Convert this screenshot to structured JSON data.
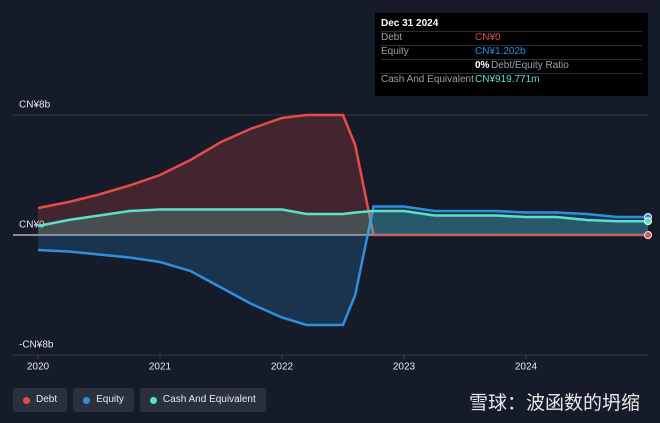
{
  "chart_data": {
    "type": "line",
    "x": [
      2020,
      2020.25,
      2020.5,
      2020.75,
      2021,
      2021.25,
      2021.5,
      2021.75,
      2022,
      2022.2,
      2022.5,
      2022.6,
      2022.75,
      2023,
      2023.25,
      2023.5,
      2023.75,
      2024,
      2024.25,
      2024.5,
      2024.75,
      2025
    ],
    "series": [
      {
        "name": "Debt",
        "color": "#e64b4b",
        "values": [
          1.8,
          2.2,
          2.7,
          3.3,
          4.0,
          5.0,
          6.2,
          7.1,
          7.8,
          8.0,
          8.0,
          6.0,
          0,
          0,
          0,
          0,
          0,
          0,
          0,
          0,
          0,
          0
        ]
      },
      {
        "name": "Equity",
        "color": "#2f8fdd",
        "values": [
          -1.0,
          -1.1,
          -1.3,
          -1.5,
          -1.8,
          -2.4,
          -3.5,
          -4.6,
          -5.5,
          -6.0,
          -6.0,
          -4.0,
          1.9,
          1.9,
          1.6,
          1.6,
          1.6,
          1.5,
          1.5,
          1.4,
          1.2,
          1.202
        ]
      },
      {
        "name": "Cash And Equivalent",
        "color": "#5ce0c8",
        "values": [
          0.6,
          1.0,
          1.3,
          1.6,
          1.7,
          1.7,
          1.7,
          1.7,
          1.7,
          1.4,
          1.4,
          1.5,
          1.6,
          1.6,
          1.3,
          1.3,
          1.3,
          1.2,
          1.2,
          1.0,
          0.92,
          0.92
        ]
      }
    ],
    "xlim": [
      2020,
      2025
    ],
    "xticks": [
      2020,
      2021,
      2022,
      2023,
      2024
    ],
    "ylim": [
      -8,
      8
    ],
    "yticks": [
      {
        "value": 8,
        "label": "CN¥8b"
      },
      {
        "value": 0,
        "label": "CN¥0"
      },
      {
        "value": -8,
        "label": "-CN¥8b"
      }
    ],
    "grid": true
  },
  "tooltip": {
    "date": "Dec 31 2024",
    "rows": [
      [
        "Debt",
        "CN¥0"
      ],
      [
        "Equity",
        "CN¥1.202b"
      ],
      [
        "Cash And Equivalent",
        "CN¥919.771m"
      ]
    ],
    "ratio": [
      "0%",
      "Debt/Equity Ratio"
    ]
  },
  "watermark": "雪球：波函数的坍缩"
}
